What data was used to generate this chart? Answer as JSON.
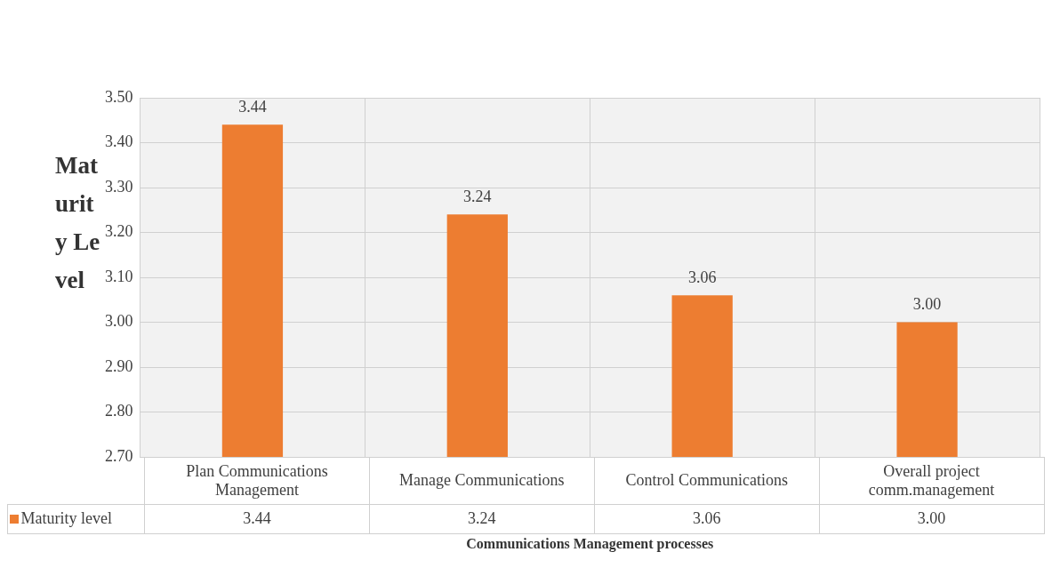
{
  "chart_data": {
    "type": "bar",
    "xlabel": "Communications Management processes",
    "ylabel": "Maturity Level",
    "categories": [
      "Plan Communications Management",
      "Manage Communications",
      "Control Communications",
      "Overall project comm.management"
    ],
    "series": [
      {
        "name": "Maturity level",
        "color": "#ed7d31",
        "values": [
          3.44,
          3.24,
          3.06,
          3.0
        ],
        "value_labels": [
          "3.44",
          "3.24",
          "3.06",
          "3.00"
        ]
      }
    ],
    "ylim": [
      2.7,
      3.5
    ],
    "yticks": [
      {
        "value": 2.7,
        "label": "2.70"
      },
      {
        "value": 2.8,
        "label": "2.80"
      },
      {
        "value": 2.9,
        "label": "2.90"
      },
      {
        "value": 3.0,
        "label": "3.00"
      },
      {
        "value": 3.1,
        "label": "3.10"
      },
      {
        "value": 3.2,
        "label": "3.20"
      },
      {
        "value": 3.3,
        "label": "3.30"
      },
      {
        "value": 3.4,
        "label": "3.40"
      },
      {
        "value": 3.5,
        "label": "3.50"
      }
    ],
    "grid": true,
    "legend": "bottom left"
  }
}
